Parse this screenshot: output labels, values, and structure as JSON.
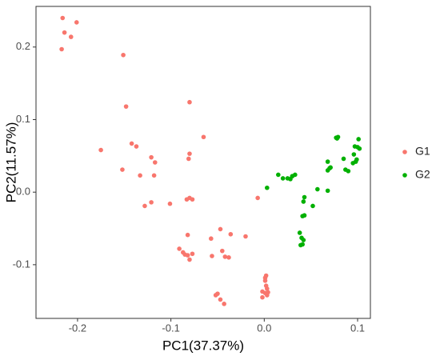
{
  "chart_data": {
    "type": "scatter",
    "x_label": "PC1(37.37%)",
    "y_label": "PC2(11.57%)",
    "xlim": [
      -0.2445,
      0.1137
    ],
    "ylim": [
      -0.174,
      0.256
    ],
    "xticks": [
      -0.2,
      -0.1,
      {
        "value": 0,
        "label": "0.0"
      },
      0.1
    ],
    "yticks": [
      -0.1,
      {
        "value": 0,
        "label": "0.0"
      },
      0.1,
      0.2
    ],
    "grid": false,
    "legend_position": "right",
    "series": [
      {
        "name": "G1",
        "color": "#F8766D",
        "x": [
          -0.216,
          -0.214,
          -0.217,
          -0.207,
          -0.201,
          -0.151,
          -0.148,
          -0.175,
          -0.142,
          -0.137,
          -0.152,
          -0.133,
          -0.117,
          -0.121,
          -0.118,
          -0.08,
          -0.081,
          -0.08,
          -0.065,
          -0.08,
          -0.083,
          -0.077,
          -0.101,
          -0.121,
          -0.128,
          -0.082,
          -0.057,
          -0.047,
          -0.036,
          -0.02,
          -0.091,
          -0.087,
          -0.082,
          -0.08,
          -0.077,
          -0.085,
          -0.056,
          -0.045,
          -0.042,
          -0.038,
          -0.007,
          0.002,
          0.001,
          -0.002,
          0.001,
          0.003,
          -0.002,
          0.002,
          0.003,
          0.001,
          0.004,
          -0.05,
          -0.047,
          -0.052,
          -0.043
        ],
        "values": [
          0.24,
          0.22,
          0.197,
          0.214,
          0.234,
          0.189,
          0.118,
          0.058,
          0.067,
          0.063,
          0.031,
          0.023,
          0.041,
          0.048,
          0.023,
          0.124,
          0.046,
          0.053,
          0.076,
          -0.008,
          -0.01,
          -0.01,
          -0.016,
          -0.014,
          -0.019,
          -0.059,
          -0.064,
          -0.051,
          -0.058,
          -0.061,
          -0.078,
          -0.083,
          -0.087,
          -0.093,
          -0.085,
          -0.086,
          -0.088,
          -0.081,
          -0.089,
          -0.09,
          -0.008,
          -0.115,
          -0.122,
          -0.137,
          -0.139,
          -0.142,
          -0.145,
          -0.129,
          -0.133,
          -0.118,
          -0.138,
          -0.14,
          -0.148,
          -0.142,
          -0.154
        ]
      },
      {
        "name": "G2",
        "color": "#00B000",
        "x": [
          0.003,
          0.015,
          0.02,
          0.025,
          0.03,
          0.033,
          0.028,
          0.038,
          0.04,
          0.042,
          0.039,
          0.041,
          0.042,
          0.043,
          0.041,
          0.043,
          0.052,
          0.057,
          0.068,
          0.068,
          0.068,
          0.071,
          0.077,
          0.079,
          0.078,
          0.07,
          0.085,
          0.087,
          0.09,
          0.096,
          0.098,
          0.099,
          0.1,
          0.101,
          0.102,
          0.097,
          0.095
        ],
        "values": [
          0.006,
          0.024,
          0.019,
          0.019,
          0.022,
          0.024,
          0.018,
          -0.056,
          -0.063,
          -0.066,
          -0.073,
          -0.072,
          -0.013,
          -0.007,
          -0.033,
          -0.032,
          -0.019,
          0.004,
          0.002,
          0.03,
          0.042,
          0.034,
          0.075,
          0.076,
          0.074,
          0.033,
          0.046,
          0.031,
          0.029,
          0.052,
          0.042,
          0.045,
          0.062,
          0.073,
          0.06,
          0.063,
          0.04
        ]
      }
    ]
  }
}
